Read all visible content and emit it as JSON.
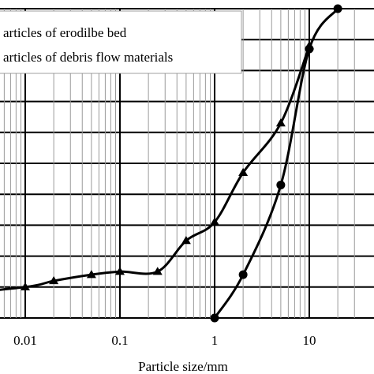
{
  "chart_data": {
    "type": "line",
    "xscale": "log",
    "xlim": [
      0.001,
      30
    ],
    "ylim": [
      0,
      100
    ],
    "grid": true,
    "xlabel": "Particle size/mm",
    "ylabel": "",
    "x_tick_labels": [
      "0.01",
      "0.1",
      "1",
      "10"
    ],
    "x_ticks": [
      0.01,
      0.1,
      1,
      10
    ],
    "legend_position": "top-left",
    "legend": [
      {
        "label": "articles of erodilbe bed",
        "marker": "circle"
      },
      {
        "label": "articles of debris flow materials",
        "marker": "triangle"
      }
    ],
    "series": [
      {
        "marker": "circle",
        "x": [
          1,
          2,
          5,
          10,
          20
        ],
        "y": [
          0,
          14,
          43,
          87,
          100
        ]
      },
      {
        "marker": "triangle",
        "x": [
          0.001,
          0.01,
          0.02,
          0.05,
          0.1,
          0.25,
          0.5,
          1,
          2,
          5,
          10
        ],
        "y": [
          7,
          10,
          12,
          14,
          15,
          15,
          25,
          31,
          47,
          63,
          88
        ]
      }
    ],
    "colors": {
      "line": "#000000",
      "grid": "#000000",
      "legend_bg": "#ffffff"
    }
  }
}
